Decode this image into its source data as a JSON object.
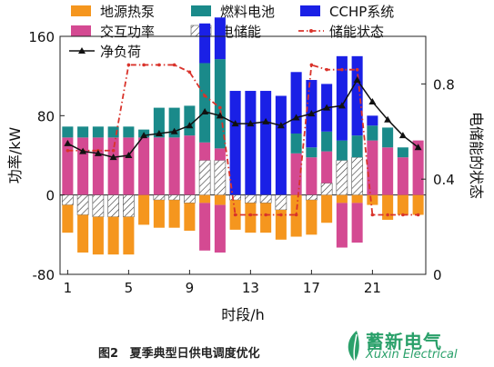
{
  "chart_data": {
    "type": "bar",
    "xlabel": "时段/h",
    "ylabel": "功率/kW",
    "y2label": "电储能的状态",
    "ylim": [
      -80,
      160
    ],
    "y2lim": [
      0,
      1.0
    ],
    "yticks": [
      "-80",
      "0",
      "80",
      "160"
    ],
    "y2ticks": [
      "0",
      "0.4",
      "0.8"
    ],
    "xticks": [
      "1",
      "5",
      "9",
      "13",
      "17",
      "21"
    ],
    "x": [
      1,
      2,
      3,
      4,
      5,
      6,
      7,
      8,
      9,
      10,
      11,
      12,
      13,
      14,
      15,
      16,
      17,
      18,
      19,
      20,
      21,
      22,
      23,
      24
    ],
    "legend": [
      {
        "key": "ground_heat_pump",
        "label": "地源热泵",
        "color": "#f5961e",
        "kind": "box"
      },
      {
        "key": "fuel_cell",
        "label": "燃料电池",
        "color": "#1a8a8a",
        "kind": "box"
      },
      {
        "key": "cchp",
        "label": "CCHP系统",
        "color": "#1a20e6",
        "kind": "box"
      },
      {
        "key": "exchange",
        "label": "交互功率",
        "color": "#d44a92",
        "kind": "box"
      },
      {
        "key": "storage",
        "label": "电储能",
        "color": "#ffffff",
        "kind": "hatch"
      },
      {
        "key": "soc",
        "label": "储能状态",
        "color": "#d9332b",
        "kind": "dashdot"
      },
      {
        "key": "net_load",
        "label": "净负荷",
        "color": "#111111",
        "kind": "triline"
      }
    ],
    "series": [
      {
        "name": "交互功率",
        "key": "exchange",
        "values": [
          58,
          58,
          58,
          58,
          58,
          58,
          58,
          58,
          60,
          18,
          12,
          0,
          0,
          0,
          0,
          42,
          38,
          32,
          0,
          0,
          55,
          48,
          38,
          55
        ]
      },
      {
        "name": "燃料电池",
        "key": "fuel_cell",
        "values": [
          11,
          11,
          11,
          11,
          11,
          8,
          30,
          30,
          30,
          80,
          90,
          0,
          0,
          0,
          0,
          20,
          10,
          20,
          20,
          22,
          15,
          20,
          10,
          0
        ]
      },
      {
        "name": "CCHP系统",
        "key": "cchp",
        "values": [
          0,
          0,
          0,
          0,
          0,
          0,
          0,
          0,
          0,
          40,
          42,
          105,
          105,
          105,
          100,
          62,
          68,
          48,
          85,
          80,
          10,
          0,
          0,
          0
        ]
      },
      {
        "name": "电储能",
        "key": "storage",
        "values": [
          -10,
          -20,
          -22,
          -22,
          -22,
          0,
          -5,
          -5,
          -8,
          35,
          35,
          -5,
          -8,
          -8,
          -15,
          0,
          -5,
          12,
          35,
          38,
          0,
          0,
          0,
          0
        ]
      },
      {
        "name": "地源热泵",
        "key": "ground_heat_pump",
        "values": [
          -28,
          -38,
          -38,
          -38,
          -38,
          -30,
          -28,
          -28,
          -28,
          -8,
          -10,
          -30,
          -30,
          -30,
          -30,
          -42,
          -35,
          -28,
          -8,
          -8,
          -10,
          -25,
          -20,
          -20
        ]
      },
      {
        "name": "交互功率(负)",
        "key": "exchange_neg",
        "values": [
          0,
          0,
          0,
          0,
          0,
          0,
          0,
          0,
          0,
          -48,
          -48,
          0,
          0,
          0,
          0,
          0,
          0,
          0,
          -45,
          -40,
          0,
          0,
          0,
          0
        ]
      },
      {
        "name": "净负荷",
        "key": "net_load",
        "values": [
          52,
          44,
          42,
          38,
          40,
          60,
          62,
          64,
          70,
          84,
          80,
          72,
          72,
          74,
          70,
          78,
          82,
          88,
          90,
          116,
          94,
          76,
          60,
          48
        ]
      },
      {
        "name": "储能状态",
        "key": "soc",
        "values": [
          0.52,
          0.52,
          0.52,
          0.52,
          0.88,
          0.88,
          0.88,
          0.88,
          0.85,
          0.75,
          0.7,
          0.25,
          0.25,
          0.25,
          0.25,
          0.25,
          0.88,
          0.86,
          0.86,
          0.86,
          0.25,
          0.25,
          0.25,
          0.25
        ]
      }
    ]
  },
  "caption": {
    "number": "图2",
    "title": "夏季典型日供电调度优化"
  },
  "watermark": {
    "chinese": "蓄新电气",
    "english": "Xuxin Electrical"
  }
}
